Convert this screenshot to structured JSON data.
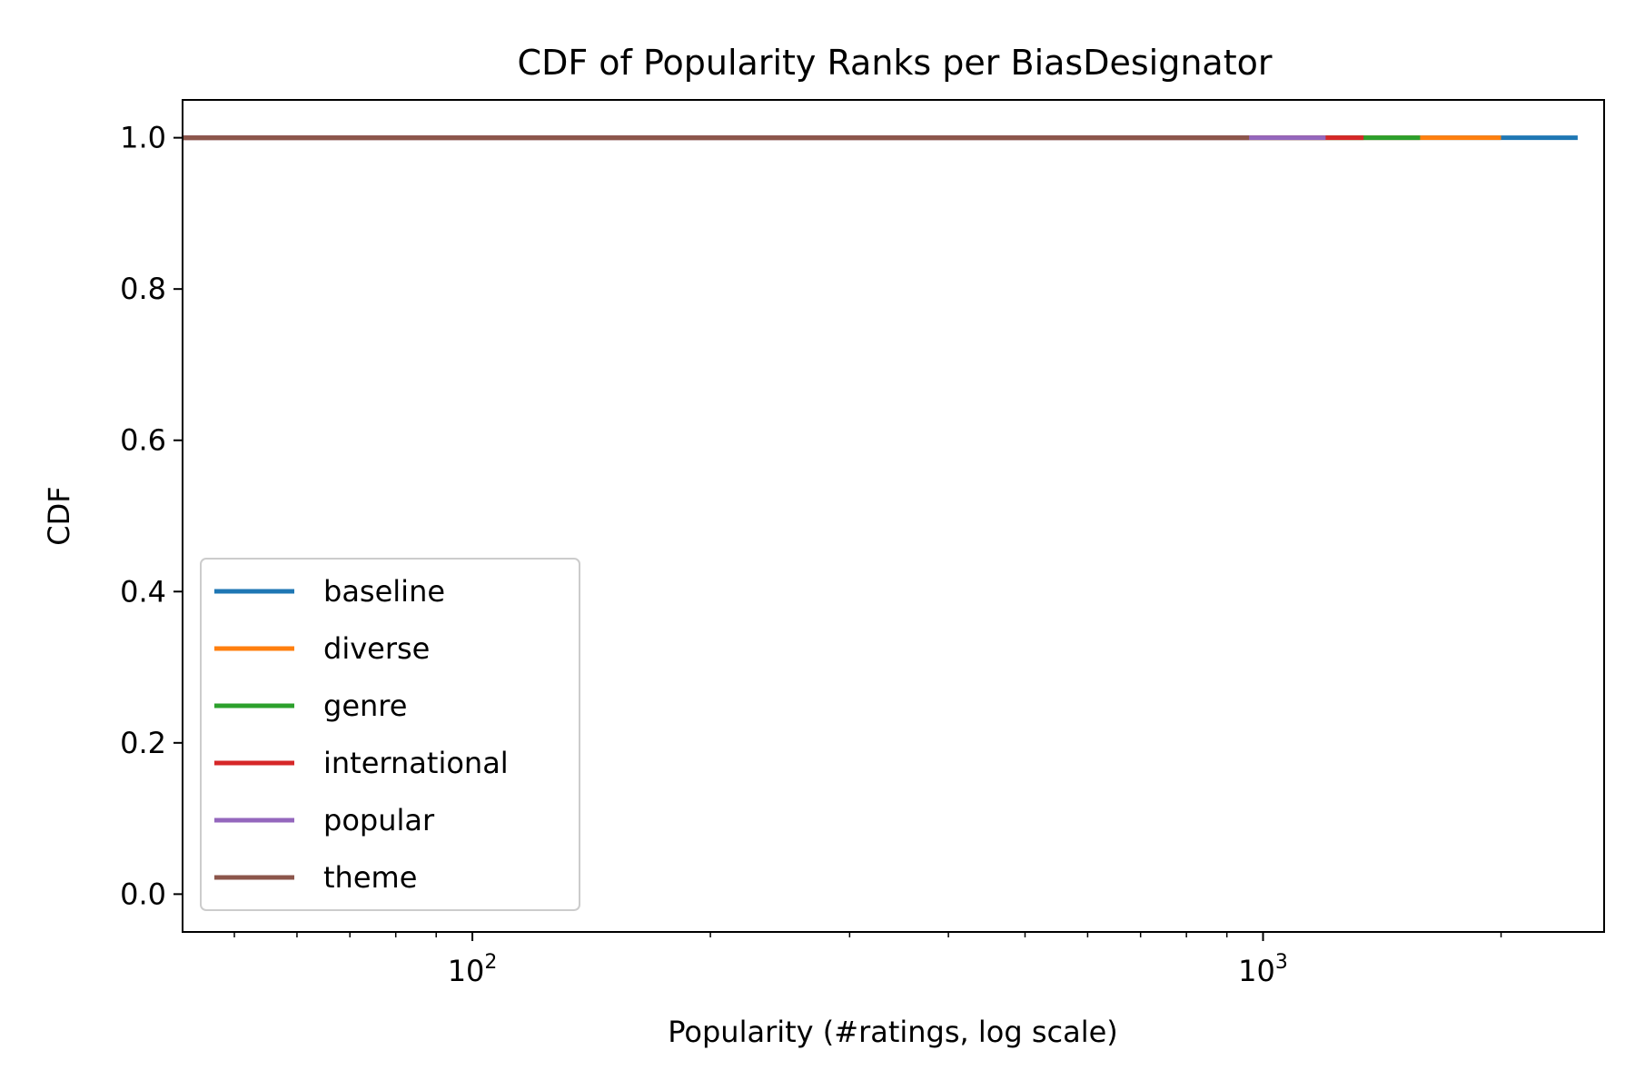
{
  "chart_data": {
    "type": "line",
    "title": "CDF of Popularity Ranks per BiasDesignator",
    "xlabel": "Popularity (#ratings, log scale)",
    "ylabel": "CDF",
    "x_scale": "log",
    "xlim": [
      43,
      2700
    ],
    "ylim": [
      -0.05,
      1.05
    ],
    "x_ticks": [
      {
        "value": 100,
        "base": "10",
        "exp": "2"
      },
      {
        "value": 1000,
        "base": "10",
        "exp": "3"
      }
    ],
    "y_ticks": [
      {
        "value": 0.0,
        "label": "0.0"
      },
      {
        "value": 0.2,
        "label": "0.2"
      },
      {
        "value": 0.4,
        "label": "0.4"
      },
      {
        "value": 0.6,
        "label": "0.6"
      },
      {
        "value": 0.8,
        "label": "0.8"
      },
      {
        "value": 1.0,
        "label": "1.0"
      }
    ],
    "grid": false,
    "legend_position": "lower-left",
    "series": [
      {
        "name": "baseline",
        "color": "#1f77b4",
        "x": [
          43,
          2500
        ],
        "y": [
          1.0,
          1.0
        ]
      },
      {
        "name": "diverse",
        "color": "#ff7f0e",
        "x": [
          43,
          2000
        ],
        "y": [
          1.0,
          1.0
        ]
      },
      {
        "name": "genre",
        "color": "#2ca02c",
        "x": [
          43,
          1580
        ],
        "y": [
          1.0,
          1.0
        ]
      },
      {
        "name": "international",
        "color": "#d62728",
        "x": [
          43,
          1340
        ],
        "y": [
          1.0,
          1.0
        ]
      },
      {
        "name": "popular",
        "color": "#9467bd",
        "x": [
          43,
          1200
        ],
        "y": [
          1.0,
          1.0
        ]
      },
      {
        "name": "theme",
        "color": "#8c564b",
        "x": [
          43,
          960
        ],
        "y": [
          1.0,
          1.0
        ]
      }
    ]
  }
}
